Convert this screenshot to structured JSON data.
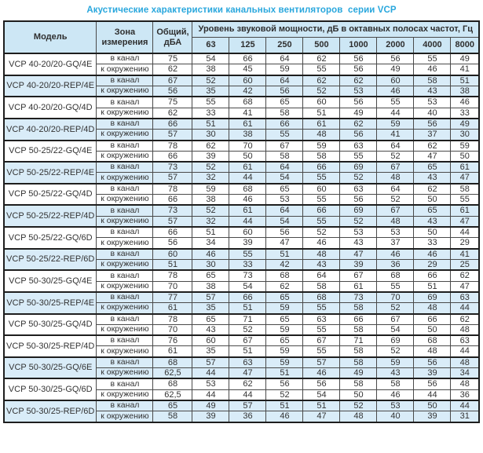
{
  "title": "Акустические характеристики канальных вентиляторов  серии VCP",
  "colors": {
    "accent": "#29a7dd",
    "header_bg": "#cde7f5",
    "row_shaded_bg": "#d9ecf8",
    "border": "#4a4a4a",
    "border_strong": "#1e1e1e",
    "text": "#333333"
  },
  "table": {
    "headers": {
      "model": "Модель",
      "zone": "Зона измерения",
      "total": "Общий, дБА",
      "spl": "Уровень звуковой мощности, дБ в октавных полосах частот, Гц",
      "freqs": [
        "63",
        "125",
        "250",
        "500",
        "1000",
        "2000",
        "4000",
        "8000"
      ]
    },
    "groups": [
      {
        "model": "VCP 40-20/20-GQ/4E",
        "shaded": false,
        "rows": [
          {
            "zone": "в канал",
            "total": "75",
            "bands": [
              "54",
              "66",
              "64",
              "62",
              "56",
              "56",
              "55",
              "49"
            ]
          },
          {
            "zone": "к окружению",
            "total": "62",
            "bands": [
              "38",
              "45",
              "59",
              "55",
              "56",
              "49",
              "46",
              "41"
            ]
          }
        ]
      },
      {
        "model": "VCP 40-20/20-REP/4E",
        "shaded": true,
        "rows": [
          {
            "zone": "в канал",
            "total": "67",
            "bands": [
              "52",
              "60",
              "64",
              "62",
              "62",
              "60",
              "58",
              "51"
            ]
          },
          {
            "zone": "к окружению",
            "total": "56",
            "bands": [
              "35",
              "42",
              "56",
              "52",
              "53",
              "46",
              "43",
              "38"
            ]
          }
        ]
      },
      {
        "model": "VCP 40-20/20-GQ/4D",
        "shaded": false,
        "rows": [
          {
            "zone": "в канал",
            "total": "75",
            "bands": [
              "55",
              "68",
              "65",
              "60",
              "56",
              "55",
              "53",
              "46"
            ]
          },
          {
            "zone": "к окружению",
            "total": "62",
            "bands": [
              "33",
              "41",
              "58",
              "51",
              "49",
              "44",
              "40",
              "33"
            ]
          }
        ]
      },
      {
        "model": "VCP 40-20/20-REP/4D",
        "shaded": true,
        "rows": [
          {
            "zone": "в канал",
            "total": "66",
            "bands": [
              "51",
              "61",
              "66",
              "61",
              "62",
              "59",
              "56",
              "49"
            ]
          },
          {
            "zone": "к окружению",
            "total": "57",
            "bands": [
              "30",
              "38",
              "55",
              "48",
              "56",
              "41",
              "37",
              "30"
            ]
          }
        ]
      },
      {
        "model": "VCP 50-25/22-GQ/4E",
        "shaded": false,
        "rows": [
          {
            "zone": "в канал",
            "total": "78",
            "bands": [
              "62",
              "70",
              "67",
              "59",
              "63",
              "64",
              "62",
              "59"
            ]
          },
          {
            "zone": "к окружению",
            "total": "66",
            "bands": [
              "39",
              "50",
              "58",
              "58",
              "55",
              "52",
              "47",
              "50"
            ]
          }
        ]
      },
      {
        "model": "VCP 50-25/22-REP/4E",
        "shaded": true,
        "rows": [
          {
            "zone": "в канал",
            "total": "73",
            "bands": [
              "52",
              "61",
              "64",
              "66",
              "69",
              "67",
              "65",
              "61"
            ]
          },
          {
            "zone": "к окружению",
            "total": "57",
            "bands": [
              "32",
              "44",
              "54",
              "55",
              "52",
              "48",
              "43",
              "47"
            ]
          }
        ]
      },
      {
        "model": "VCP 50-25/22-GQ/4D",
        "shaded": false,
        "rows": [
          {
            "zone": "в канал",
            "total": "78",
            "bands": [
              "59",
              "68",
              "65",
              "60",
              "63",
              "64",
              "62",
              "58"
            ]
          },
          {
            "zone": "к окружению",
            "total": "66",
            "bands": [
              "38",
              "46",
              "53",
              "55",
              "56",
              "52",
              "50",
              "55"
            ]
          }
        ]
      },
      {
        "model": "VCP 50-25/22-REP/4D",
        "shaded": true,
        "rows": [
          {
            "zone": "в канал",
            "total": "73",
            "bands": [
              "52",
              "61",
              "64",
              "66",
              "69",
              "67",
              "65",
              "61"
            ]
          },
          {
            "zone": "к окружению",
            "total": "57",
            "bands": [
              "32",
              "44",
              "54",
              "55",
              "52",
              "48",
              "43",
              "47"
            ]
          }
        ]
      },
      {
        "model": "VCP 50-25/22-GQ/6D",
        "shaded": false,
        "rows": [
          {
            "zone": "в канал",
            "total": "66",
            "bands": [
              "51",
              "60",
              "56",
              "52",
              "53",
              "53",
              "50",
              "44"
            ]
          },
          {
            "zone": "к окружению",
            "total": "56",
            "bands": [
              "34",
              "39",
              "47",
              "46",
              "43",
              "37",
              "33",
              "29"
            ]
          }
        ]
      },
      {
        "model": "VCP 50-25/22-REP/6D",
        "shaded": true,
        "rows": [
          {
            "zone": "в канал",
            "total": "60",
            "bands": [
              "46",
              "55",
              "51",
              "48",
              "47",
              "46",
              "46",
              "41"
            ]
          },
          {
            "zone": "к окружению",
            "total": "51",
            "bands": [
              "30",
              "33",
              "42",
              "43",
              "39",
              "36",
              "29",
              "25"
            ]
          }
        ]
      },
      {
        "model": "VCP 50-30/25-GQ/4E",
        "shaded": false,
        "rows": [
          {
            "zone": "в канал",
            "total": "78",
            "bands": [
              "65",
              "73",
              "68",
              "64",
              "67",
              "68",
              "66",
              "62"
            ]
          },
          {
            "zone": "к окружению",
            "total": "70",
            "bands": [
              "38",
              "54",
              "62",
              "58",
              "61",
              "55",
              "51",
              "47"
            ]
          }
        ]
      },
      {
        "model": "VCP 50-30/25-REP/4E",
        "shaded": true,
        "rows": [
          {
            "zone": "в канал",
            "total": "77",
            "bands": [
              "57",
              "66",
              "65",
              "68",
              "73",
              "70",
              "69",
              "63"
            ]
          },
          {
            "zone": "к окружению",
            "total": "61",
            "bands": [
              "35",
              "51",
              "59",
              "55",
              "58",
              "52",
              "48",
              "44"
            ]
          }
        ]
      },
      {
        "model": "VCP 50-30/25-GQ/4D",
        "shaded": false,
        "rows": [
          {
            "zone": "в канал",
            "total": "78",
            "bands": [
              "65",
              "71",
              "65",
              "63",
              "66",
              "67",
              "66",
              "62"
            ]
          },
          {
            "zone": "к окружению",
            "total": "70",
            "bands": [
              "43",
              "52",
              "59",
              "55",
              "58",
              "54",
              "50",
              "48"
            ]
          }
        ]
      },
      {
        "model": "VCP 50-30/25-REP/4D",
        "shaded": false,
        "rows": [
          {
            "zone": "в канал",
            "total": "76",
            "bands": [
              "60",
              "67",
              "65",
              "67",
              "71",
              "69",
              "68",
              "63"
            ]
          },
          {
            "zone": "к окружению",
            "total": "61",
            "bands": [
              "35",
              "51",
              "59",
              "55",
              "58",
              "52",
              "48",
              "44"
            ]
          }
        ]
      },
      {
        "model": "VCP 50-30/25-GQ/6E",
        "shaded": true,
        "rows": [
          {
            "zone": "в канал",
            "total": "68",
            "bands": [
              "57",
              "63",
              "59",
              "57",
              "58",
              "59",
              "56",
              "48"
            ]
          },
          {
            "zone": "к окружению",
            "total": "62,5",
            "bands": [
              "44",
              "47",
              "51",
              "46",
              "49",
              "43",
              "39",
              "34"
            ]
          }
        ]
      },
      {
        "model": "VCP 50-30/25-GQ/6D",
        "shaded": false,
        "rows": [
          {
            "zone": "в канал",
            "total": "68",
            "bands": [
              "53",
              "62",
              "56",
              "56",
              "58",
              "58",
              "56",
              "48"
            ]
          },
          {
            "zone": "к окружению",
            "total": "62,5",
            "bands": [
              "44",
              "44",
              "52",
              "54",
              "50",
              "46",
              "44",
              "36"
            ]
          }
        ]
      },
      {
        "model": "VCP 50-30/25-REP/6D",
        "shaded": true,
        "rows": [
          {
            "zone": "в канал",
            "total": "65",
            "bands": [
              "49",
              "57",
              "51",
              "51",
              "52",
              "53",
              "50",
              "44"
            ]
          },
          {
            "zone": "к окружению",
            "total": "58",
            "bands": [
              "39",
              "36",
              "46",
              "47",
              "48",
              "40",
              "39",
              "31"
            ]
          }
        ]
      }
    ]
  }
}
